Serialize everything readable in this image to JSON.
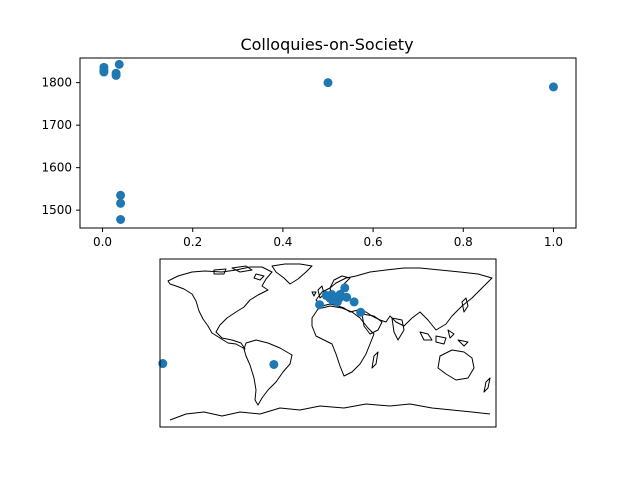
{
  "chart_data": [
    {
      "type": "scatter",
      "title": "Colloquies-on-Society",
      "xlabel": "",
      "ylabel": "",
      "xlim": [
        -0.05,
        1.05
      ],
      "ylim": [
        1458,
        1858
      ],
      "xticks": [
        0.0,
        0.2,
        0.4,
        0.6,
        0.8,
        1.0
      ],
      "xtick_labels": [
        "0.0",
        "0.2",
        "0.4",
        "0.6",
        "0.8",
        "1.0"
      ],
      "yticks": [
        1500,
        1600,
        1700,
        1800
      ],
      "ytick_labels": [
        "1500",
        "1600",
        "1700",
        "1800"
      ],
      "grid": false,
      "color": "#1f77b4",
      "points": [
        {
          "x": 0.003,
          "y": 1836
        },
        {
          "x": 0.003,
          "y": 1830
        },
        {
          "x": 0.003,
          "y": 1825
        },
        {
          "x": 0.03,
          "y": 1822
        },
        {
          "x": 0.03,
          "y": 1817
        },
        {
          "x": 0.037,
          "y": 1843
        },
        {
          "x": 0.04,
          "y": 1535
        },
        {
          "x": 0.04,
          "y": 1516
        },
        {
          "x": 0.04,
          "y": 1478
        },
        {
          "x": 0.5,
          "y": 1800
        },
        {
          "x": 1.0,
          "y": 1790
        }
      ]
    },
    {
      "type": "map",
      "projection": "plate-carree",
      "title": "",
      "lon_range": [
        -180,
        180
      ],
      "lat_range": [
        -90,
        90
      ],
      "color": "#1f77b4",
      "coastline_color": "#000000",
      "points": [
        {
          "lon": -2,
          "lat": 51
        },
        {
          "lon": 2,
          "lat": 48
        },
        {
          "lon": 5,
          "lat": 46
        },
        {
          "lon": 12,
          "lat": 48
        },
        {
          "lon": 10,
          "lat": 44
        },
        {
          "lon": 13,
          "lat": 52
        },
        {
          "lon": 18,
          "lat": 59
        },
        {
          "lon": 4,
          "lat": 52
        },
        {
          "lon": 20,
          "lat": 49
        },
        {
          "lon": -9,
          "lat": 41
        },
        {
          "lon": 28,
          "lat": 44
        },
        {
          "lon": 35,
          "lat": 33
        },
        {
          "lon": -58,
          "lat": -23
        },
        {
          "lon": -177,
          "lat": -22
        }
      ]
    }
  ]
}
